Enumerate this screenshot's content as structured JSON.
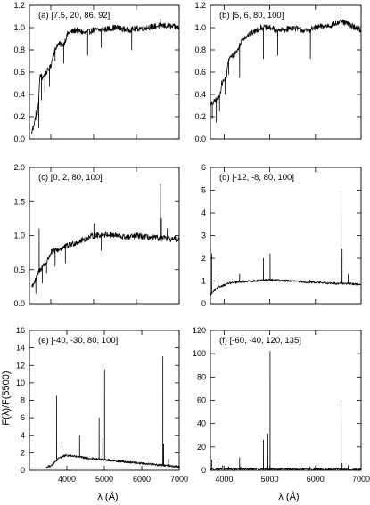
{
  "axis_titles": {
    "x_left": "λ (Å)",
    "x_right": "λ (Å)",
    "y": "F(λ)/F(5500)"
  },
  "chart_data": [
    {
      "type": "line",
      "label": "(a) [7.5, 20, 86, 92]",
      "xlim": [
        3500,
        7000
      ],
      "ylim": [
        0,
        1.2
      ],
      "yticks": [
        0.0,
        0.2,
        0.4,
        0.6,
        0.8,
        1.0,
        1.2
      ],
      "ytick_labels": [
        "0.0",
        "0.2",
        "0.4",
        "0.6",
        "0.8",
        "1.0",
        "1.2"
      ],
      "xticks": [
        4000,
        5000,
        6000,
        7000
      ],
      "xtick_labels": [],
      "continuum": [
        [
          3550,
          0.05
        ],
        [
          3600,
          0.13
        ],
        [
          3650,
          0.2
        ],
        [
          3700,
          0.26
        ],
        [
          3750,
          0.58
        ],
        [
          3800,
          0.55
        ],
        [
          3900,
          0.6
        ],
        [
          4000,
          0.65
        ],
        [
          4050,
          0.75
        ],
        [
          4150,
          0.85
        ],
        [
          4300,
          0.85
        ],
        [
          4400,
          0.95
        ],
        [
          4600,
          0.98
        ],
        [
          4800,
          0.95
        ],
        [
          5000,
          0.98
        ],
        [
          5200,
          0.98
        ],
        [
          5500,
          1.0
        ],
        [
          5800,
          0.98
        ],
        [
          6200,
          1.0
        ],
        [
          6600,
          1.02
        ],
        [
          7000,
          1.0
        ]
      ],
      "lines": [
        [
          3590,
          0.08
        ],
        [
          3650,
          0.26
        ],
        [
          3720,
          0.1
        ],
        [
          3780,
          0.35
        ],
        [
          3860,
          0.42
        ],
        [
          3970,
          0.47
        ],
        [
          4100,
          0.7
        ],
        [
          4300,
          0.68
        ],
        [
          4860,
          0.75
        ],
        [
          5175,
          0.82
        ],
        [
          5890,
          0.8
        ],
        [
          6560,
          1.08
        ]
      ]
    },
    {
      "type": "line",
      "label": "(b) [5, 6, 80, 100]",
      "xlim": [
        3700,
        7000
      ],
      "ylim": [
        0,
        1.2
      ],
      "yticks": [
        0.0,
        0.2,
        0.4,
        0.6,
        0.8,
        1.0,
        1.2
      ],
      "ytick_labels": [
        "0.0",
        "0.2",
        "0.4",
        "0.6",
        "0.8",
        "1.0",
        "1.2"
      ],
      "xticks": [
        4000,
        5000,
        6000,
        7000
      ],
      "xtick_labels": [],
      "continuum": [
        [
          3700,
          0.3
        ],
        [
          3800,
          0.34
        ],
        [
          3900,
          0.38
        ],
        [
          3950,
          0.5
        ],
        [
          4050,
          0.55
        ],
        [
          4100,
          0.72
        ],
        [
          4200,
          0.75
        ],
        [
          4300,
          0.8
        ],
        [
          4400,
          0.9
        ],
        [
          4600,
          0.95
        ],
        [
          4800,
          1.0
        ],
        [
          5000,
          1.0
        ],
        [
          5200,
          0.97
        ],
        [
          5500,
          1.0
        ],
        [
          5800,
          0.97
        ],
        [
          6000,
          1.0
        ],
        [
          6300,
          1.02
        ],
        [
          6600,
          1.05
        ],
        [
          7000,
          0.98
        ]
      ],
      "lines": [
        [
          3740,
          0.18
        ],
        [
          3830,
          0.15
        ],
        [
          3900,
          0.25
        ],
        [
          4020,
          0.4
        ],
        [
          4100,
          0.58
        ],
        [
          4340,
          0.55
        ],
        [
          4860,
          0.72
        ],
        [
          5175,
          0.75
        ],
        [
          5890,
          0.72
        ],
        [
          6560,
          1.15
        ]
      ]
    },
    {
      "type": "line",
      "label": "(c) [0, 2, 80, 100]",
      "xlim": [
        3500,
        7000
      ],
      "ylim": [
        0,
        2.0
      ],
      "yticks": [
        0.0,
        0.5,
        1.0,
        1.5,
        2.0
      ],
      "ytick_labels": [
        "0.0",
        "0.5",
        "1.0",
        "1.5",
        "2.0"
      ],
      "xticks": [
        4000,
        5000,
        6000,
        7000
      ],
      "xtick_labels": [],
      "continuum": [
        [
          3550,
          0.25
        ],
        [
          3650,
          0.35
        ],
        [
          3700,
          0.45
        ],
        [
          3800,
          0.55
        ],
        [
          3900,
          0.6
        ],
        [
          4000,
          0.75
        ],
        [
          4200,
          0.8
        ],
        [
          4400,
          0.85
        ],
        [
          4600,
          0.9
        ],
        [
          4800,
          0.95
        ],
        [
          5000,
          1.0
        ],
        [
          5300,
          1.02
        ],
        [
          5500,
          1.0
        ],
        [
          5800,
          0.97
        ],
        [
          6000,
          1.0
        ],
        [
          6300,
          0.97
        ],
        [
          6600,
          0.96
        ],
        [
          7000,
          0.94
        ]
      ],
      "lines": [
        [
          3650,
          0.15
        ],
        [
          3727,
          1.1
        ],
        [
          3800,
          0.3
        ],
        [
          3900,
          0.45
        ],
        [
          4100,
          0.55
        ],
        [
          4340,
          0.6
        ],
        [
          4860,
          0.95
        ],
        [
          5007,
          1.18
        ],
        [
          5175,
          0.78
        ],
        [
          6560,
          1.75
        ],
        [
          6584,
          1.25
        ],
        [
          6720,
          1.1
        ]
      ]
    },
    {
      "type": "line",
      "label": "(d) [-12, -8, 80, 100]",
      "xlim": [
        3700,
        7000
      ],
      "ylim": [
        0,
        6
      ],
      "yticks": [
        0,
        1,
        2,
        3,
        4,
        5,
        6
      ],
      "ytick_labels": [
        "0",
        "1",
        "2",
        "3",
        "4",
        "5",
        "6"
      ],
      "xticks": [
        4000,
        5000,
        6000,
        7000
      ],
      "xtick_labels": [],
      "continuum": [
        [
          3700,
          0.4
        ],
        [
          3800,
          0.6
        ],
        [
          3900,
          0.75
        ],
        [
          4100,
          0.9
        ],
        [
          4300,
          0.95
        ],
        [
          4600,
          1.0
        ],
        [
          5000,
          1.05
        ],
        [
          5500,
          1.0
        ],
        [
          5800,
          0.95
        ],
        [
          6000,
          0.95
        ],
        [
          6300,
          0.9
        ],
        [
          6600,
          0.9
        ],
        [
          7000,
          0.85
        ]
      ],
      "lines": [
        [
          3727,
          2.2
        ],
        [
          3869,
          1.3
        ],
        [
          4340,
          1.3
        ],
        [
          4861,
          2.0
        ],
        [
          5007,
          2.2
        ],
        [
          5876,
          1.05
        ],
        [
          6563,
          4.9
        ],
        [
          6584,
          2.4
        ],
        [
          6717,
          1.3
        ]
      ]
    },
    {
      "type": "line",
      "label": "(e) [-40, -30, 80, 100]",
      "xlim": [
        3000,
        7000
      ],
      "ylim": [
        0,
        16
      ],
      "yticks": [
        0,
        2,
        4,
        6,
        8,
        10,
        12,
        14,
        16
      ],
      "ytick_labels": [
        "0",
        "2",
        "4",
        "6",
        "8",
        "10",
        "12",
        "14",
        "16"
      ],
      "xticks": [
        4000,
        5000,
        6000,
        7000
      ],
      "xtick_labels": [
        "4000",
        "5000",
        "6000",
        "7000"
      ],
      "continuum": [
        [
          3450,
          0.3
        ],
        [
          3600,
          0.6
        ],
        [
          3700,
          1.0
        ],
        [
          3800,
          1.4
        ],
        [
          3900,
          1.6
        ],
        [
          4000,
          1.7
        ],
        [
          4200,
          1.6
        ],
        [
          4500,
          1.4
        ],
        [
          5000,
          1.2
        ],
        [
          5500,
          1.0
        ],
        [
          6000,
          0.8
        ],
        [
          6500,
          0.6
        ],
        [
          7000,
          0.4
        ]
      ],
      "lines": [
        [
          3727,
          8.5
        ],
        [
          3869,
          2.8
        ],
        [
          3968,
          1.8
        ],
        [
          4102,
          1.8
        ],
        [
          4340,
          4.0
        ],
        [
          4861,
          6.0
        ],
        [
          4959,
          3.7
        ],
        [
          5007,
          11.5
        ],
        [
          5876,
          0.9
        ],
        [
          6300,
          0.8
        ],
        [
          6563,
          13.0
        ],
        [
          6584,
          3.0
        ],
        [
          6717,
          1.3
        ]
      ]
    },
    {
      "type": "line",
      "label": "(f) [-60, -40, 120, 135]",
      "xlim": [
        3700,
        7000
      ],
      "ylim": [
        0,
        120
      ],
      "yticks": [
        0,
        20,
        40,
        60,
        80,
        100,
        120
      ],
      "ytick_labels": [
        "0",
        "20",
        "40",
        "60",
        "80",
        "100",
        "120"
      ],
      "xticks": [
        4000,
        5000,
        6000,
        7000
      ],
      "xtick_labels": [
        "4000",
        "5000",
        "6000",
        "7000"
      ],
      "continuum": [
        [
          3700,
          1.0
        ],
        [
          4000,
          1.2
        ],
        [
          5000,
          1.0
        ],
        [
          6000,
          0.8
        ],
        [
          7000,
          0.6
        ]
      ],
      "lines": [
        [
          3727,
          9.0
        ],
        [
          3869,
          7.0
        ],
        [
          3968,
          4.0
        ],
        [
          4102,
          3.0
        ],
        [
          4340,
          11.0
        ],
        [
          4363,
          3.0
        ],
        [
          4861,
          26.0
        ],
        [
          4959,
          31.0
        ],
        [
          5007,
          102.0
        ],
        [
          5876,
          3.0
        ],
        [
          6300,
          2.0
        ],
        [
          6563,
          60.0
        ],
        [
          6584,
          6.0
        ],
        [
          6717,
          4.0
        ]
      ]
    }
  ]
}
